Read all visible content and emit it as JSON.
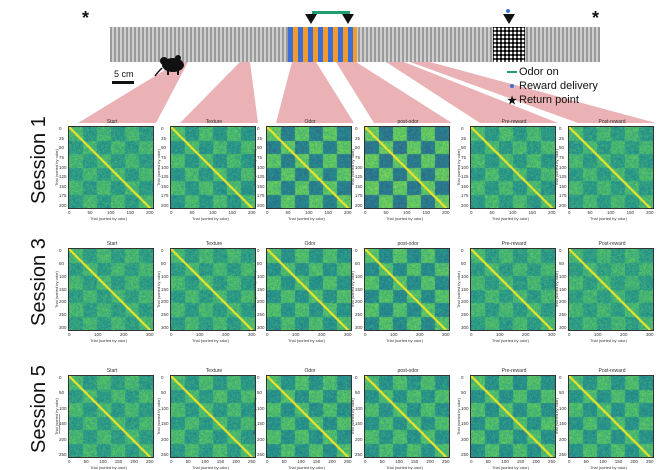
{
  "figure": {
    "scale_label": "5 cm",
    "legend": [
      {
        "symbol": "line",
        "label": "Odor on",
        "color": "#1f9d6f"
      },
      {
        "symbol": "dot",
        "label": "Reward delivery",
        "color": "#3a6fd8"
      },
      {
        "symbol": "star",
        "label": "Return point",
        "color": "#111111"
      }
    ],
    "track_colors": {
      "orange": "#f39a2a",
      "blue": "#3a6fd8",
      "fan": "#e6a5a8"
    }
  },
  "panel_titles": [
    "Start",
    "Texture",
    "Odor",
    "post-odor",
    "Pre-reward",
    "Post-reward"
  ],
  "x_axis_label": "Trial (sorted by odor)",
  "y_axis_label": "Trial (sorted by odor)",
  "sessions": [
    {
      "label": "Session 1",
      "xticks": [
        "0",
        "50",
        "100",
        "150",
        "200"
      ],
      "yticks": [
        "0",
        "25",
        "50",
        "75",
        "100",
        "125",
        "150",
        "175",
        "200"
      ],
      "contrast": [
        0.35,
        0.45,
        0.85,
        1.0,
        0.4,
        0.35
      ]
    },
    {
      "label": "Session 3",
      "xticks": [
        "0",
        "100",
        "200",
        "300"
      ],
      "yticks": [
        "0",
        "50",
        "100",
        "150",
        "200",
        "250",
        "300"
      ],
      "contrast": [
        0.3,
        0.35,
        0.5,
        0.65,
        0.35,
        0.3
      ]
    },
    {
      "label": "Session 5",
      "xticks": [
        "0",
        "50",
        "100",
        "150",
        "200",
        "250"
      ],
      "yticks": [
        "0",
        "50",
        "100",
        "150",
        "200",
        "250"
      ],
      "contrast": [
        0.35,
        0.4,
        0.55,
        0.5,
        0.55,
        0.5
      ]
    }
  ]
}
